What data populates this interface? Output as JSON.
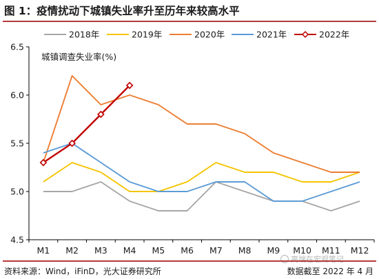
{
  "title": "图 1：疫情扰动下城镇失业率升至历年来较高水平",
  "source": "资料来源：Wind，iFinD，光大证券研究所",
  "date_note": "数据截至 2022 年 4 月",
  "watermark": "高端在宏观笔记",
  "chart_data": {
    "type": "line",
    "title": "图 1：疫情扰动下城镇失业率升至历年来较高水平",
    "ylabel": "城镇调查失业率(%)",
    "xlabel": "",
    "categories": [
      "M1",
      "M2",
      "M3",
      "M4",
      "M5",
      "M6",
      "M7",
      "M8",
      "M9",
      "M10",
      "M11",
      "M12"
    ],
    "ylim": [
      4.5,
      6.5
    ],
    "yticks": [
      "4.5",
      "5.0",
      "5.5",
      "6.0",
      "6.5"
    ],
    "legend_position": "top",
    "grid": false,
    "series": [
      {
        "name": "2018年",
        "color": "#a6a6a6",
        "marker": "none",
        "values": [
          5.0,
          5.0,
          5.1,
          4.9,
          4.8,
          4.8,
          5.1,
          5.0,
          4.9,
          4.9,
          4.8,
          4.9
        ]
      },
      {
        "name": "2019年",
        "color": "#f5c400",
        "marker": "none",
        "values": [
          5.1,
          5.3,
          5.2,
          5.0,
          5.0,
          5.1,
          5.3,
          5.2,
          5.2,
          5.1,
          5.1,
          5.2
        ]
      },
      {
        "name": "2020年",
        "color": "#ed7d31",
        "marker": "none",
        "values": [
          5.3,
          6.2,
          5.9,
          6.0,
          5.9,
          5.7,
          5.7,
          5.6,
          5.4,
          5.3,
          5.2,
          5.2
        ]
      },
      {
        "name": "2021年",
        "color": "#5b9bd5",
        "marker": "none",
        "values": [
          5.4,
          5.5,
          5.3,
          5.1,
          5.0,
          5.0,
          5.1,
          5.1,
          4.9,
          4.9,
          5.0,
          5.1
        ]
      },
      {
        "name": "2022年",
        "color": "#c00000",
        "marker": "diamond",
        "values": [
          5.3,
          5.5,
          5.8,
          6.1,
          null,
          null,
          null,
          null,
          null,
          null,
          null,
          null
        ]
      }
    ]
  }
}
